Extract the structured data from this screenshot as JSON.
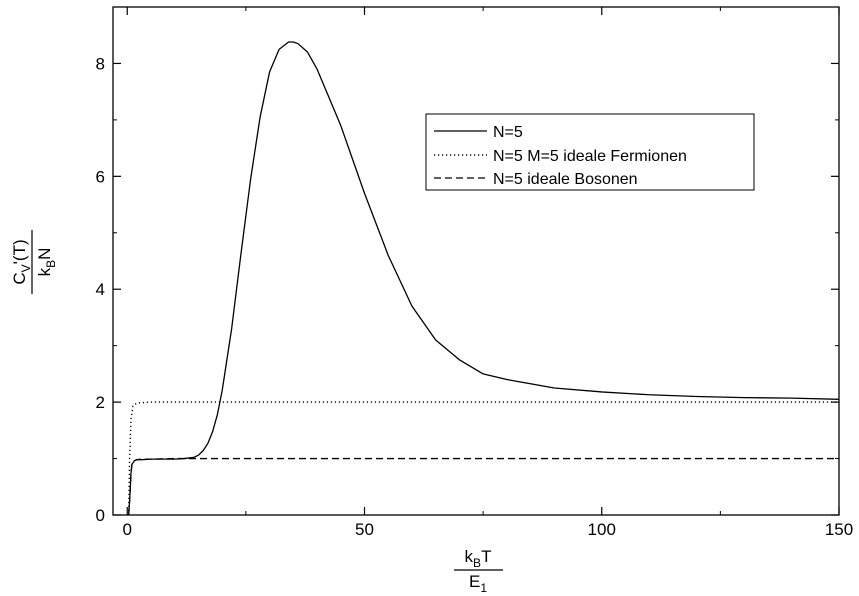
{
  "chart_data": {
    "type": "line",
    "xlabel": {
      "numerator_main": "k",
      "numerator_sub": "B",
      "numerator_tail": "T",
      "denominator_main": "E",
      "denominator_sub": "1"
    },
    "ylabel": {
      "numerator_main": "C",
      "numerator_sub": "V",
      "numerator_tail": "'(T)",
      "denominator_main": "k",
      "denominator_sub": "B",
      "denominator_tail": "N"
    },
    "xlim": [
      -3,
      150
    ],
    "ylim": [
      0,
      9
    ],
    "x_ticks": [
      0,
      50,
      100,
      150
    ],
    "y_ticks": [
      0,
      2,
      4,
      6,
      8
    ],
    "x_tick_labels": [
      "0",
      "50",
      "100",
      "150"
    ],
    "y_tick_labels": [
      "0",
      "2",
      "4",
      "6",
      "8"
    ],
    "grid": false,
    "legend_position": "upper-right",
    "series": [
      {
        "name": "N=5",
        "style": "solid",
        "color": "#000000",
        "x": [
          0.3,
          0.5,
          0.8,
          1.0,
          1.5,
          2,
          3,
          5,
          8,
          10,
          12,
          14,
          15,
          16,
          17,
          18,
          19,
          20,
          22,
          24,
          26,
          28,
          30,
          32,
          34,
          35,
          36,
          38,
          40,
          42,
          45,
          50,
          55,
          60,
          65,
          70,
          75,
          80,
          90,
          100,
          110,
          120,
          130,
          140,
          150
        ],
        "y": [
          0.0,
          0.25,
          0.75,
          0.9,
          0.96,
          0.98,
          0.98,
          0.99,
          0.99,
          0.99,
          1.0,
          1.02,
          1.06,
          1.14,
          1.27,
          1.48,
          1.78,
          2.2,
          3.3,
          4.65,
          5.95,
          7.05,
          7.85,
          8.25,
          8.38,
          8.38,
          8.35,
          8.2,
          7.9,
          7.5,
          6.9,
          5.7,
          4.6,
          3.7,
          3.1,
          2.75,
          2.5,
          2.4,
          2.25,
          2.18,
          2.13,
          2.1,
          2.08,
          2.07,
          2.05
        ]
      },
      {
        "name": "N=5 M=5 ideale Fermionen",
        "style": "dotted",
        "color": "#000000",
        "x": [
          0.3,
          0.5,
          0.8,
          1.2,
          2,
          3,
          5,
          10,
          20,
          50,
          100,
          150
        ],
        "y": [
          0.0,
          1.0,
          1.7,
          1.93,
          1.98,
          1.99,
          2.0,
          2.0,
          2.0,
          2.0,
          2.0,
          2.0
        ]
      },
      {
        "name": "N=5 ideale Bosonen",
        "style": "dashed",
        "color": "#000000",
        "x": [
          0.3,
          0.5,
          0.8,
          1.0,
          1.5,
          2,
          3,
          5,
          10,
          20,
          50,
          100,
          150
        ],
        "y": [
          0.0,
          0.25,
          0.75,
          0.9,
          0.96,
          0.98,
          0.99,
          0.99,
          1.0,
          1.0,
          1.0,
          1.0,
          1.0
        ]
      }
    ]
  }
}
